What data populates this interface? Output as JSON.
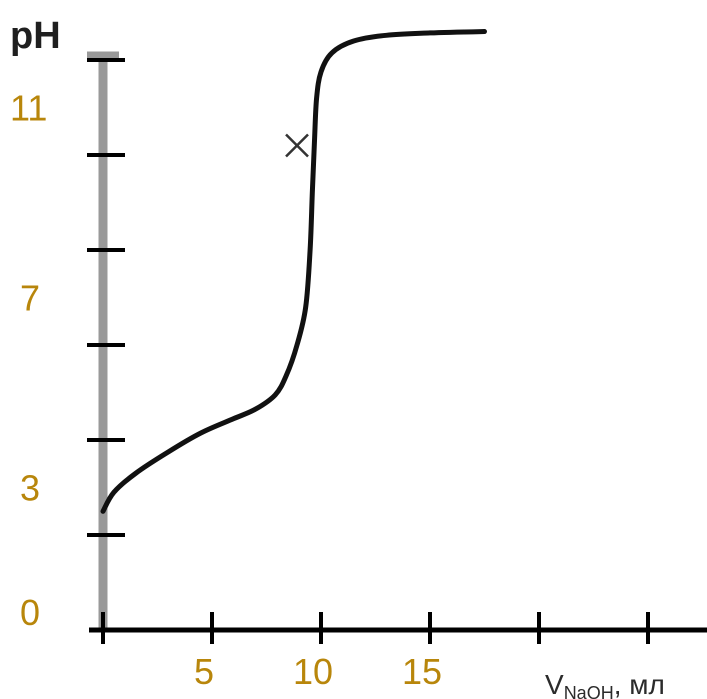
{
  "chart_data": {
    "type": "line",
    "ylabel": "pH",
    "xlabel": "V",
    "xlabel_sub": "NaOH",
    "xlabel_unit": ", мл",
    "ylim": [
      0,
      12
    ],
    "xlim": [
      0,
      28
    ],
    "y_ticks": [
      2,
      4,
      6,
      8,
      10,
      12
    ],
    "y_tick_labels": [
      {
        "value": 0,
        "label": "0"
      },
      {
        "value": 3,
        "label": "3"
      },
      {
        "value": 7,
        "label": "7"
      },
      {
        "value": 11,
        "label": "11"
      }
    ],
    "x_ticks": [
      0,
      5,
      10,
      15,
      20,
      25
    ],
    "x_tick_labels": [
      {
        "value": 5,
        "label": "5"
      },
      {
        "value": 10,
        "label": "10"
      },
      {
        "value": 15,
        "label": "15"
      }
    ],
    "series": [
      {
        "x": [
          0,
          0.5,
          1.5,
          3,
          4.5,
          6,
          7,
          7.9,
          8.4,
          8.9,
          9.3,
          9.5,
          9.6,
          9.7,
          9.8,
          10,
          10.5,
          11.5,
          13,
          15,
          17.5
        ],
        "y": [
          2.5,
          2.9,
          3.3,
          3.75,
          4.15,
          4.45,
          4.65,
          4.95,
          5.35,
          6.0,
          6.8,
          8.0,
          9.2,
          10.3,
          11.2,
          11.75,
          12.15,
          12.4,
          12.52,
          12.57,
          12.6
        ]
      }
    ],
    "marker": {
      "x": 8.9,
      "y": 10.2,
      "symbol": "×"
    },
    "colors": {
      "axis_line": "#000000",
      "y_axis": "#999999",
      "curve": "#111111",
      "marker": "#333333",
      "tick_labels": "#b8860b",
      "ylabel": "#1f1f1f"
    }
  }
}
